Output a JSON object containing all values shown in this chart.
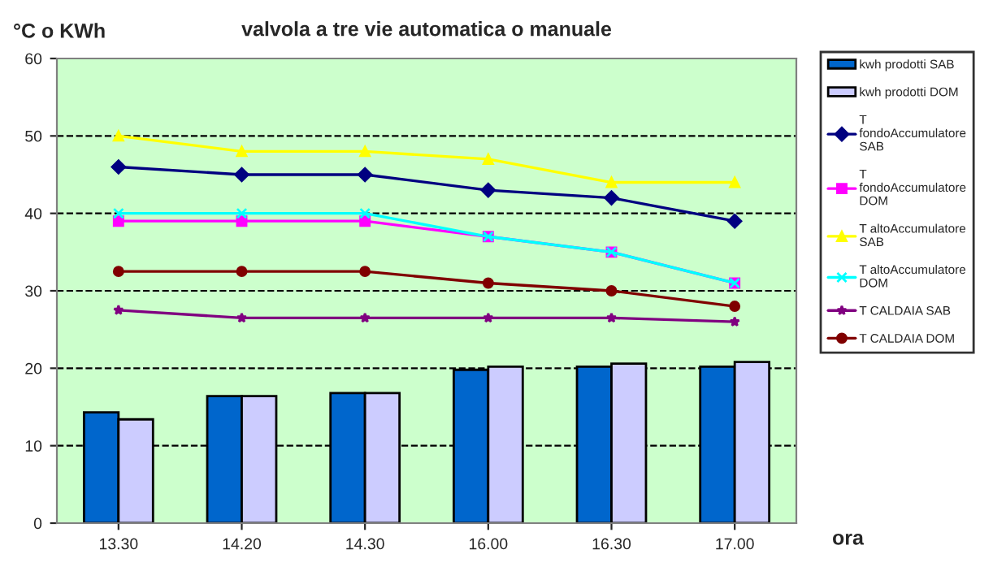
{
  "chart_data": {
    "type": "bar",
    "title": "valvola a tre vie automatica o manuale",
    "ylabel": "°C o KWh",
    "xlabel": "ora",
    "categories": [
      "13.30",
      "14.20",
      "14.30",
      "16.00",
      "16.30",
      "17.00"
    ],
    "series": [
      {
        "name": "kwh prodotti SAB",
        "color": "#0066cc",
        "values": [
          14.3,
          16.4,
          16.8,
          19.8,
          20.2,
          20.2
        ]
      },
      {
        "name": "kwh prodotti DOM",
        "color": "#ccccff",
        "values": [
          13.4,
          16.4,
          16.8,
          20.2,
          20.6,
          20.8
        ]
      },
      {
        "name": "T fondoAccumulatore SAB",
        "type": "line",
        "color": "#000080",
        "marker": "diamond",
        "values": [
          46,
          45,
          45,
          43,
          42,
          39
        ]
      },
      {
        "name": "T fondoAccumulatore DOM",
        "type": "line",
        "color": "#ff00ff",
        "marker": "square",
        "values": [
          39,
          39,
          39,
          37,
          35,
          31
        ]
      },
      {
        "name": "T altoAccumulatore SAB",
        "type": "line",
        "color": "#ffff00",
        "marker": "triangle",
        "values": [
          50,
          48,
          48,
          47,
          44,
          44
        ]
      },
      {
        "name": "T altoAccumulatore DOM",
        "type": "line",
        "color": "#00ffff",
        "marker": "cross",
        "values": [
          40,
          40,
          40,
          37,
          35,
          31
        ]
      },
      {
        "name": "T CALDAIA SAB",
        "type": "line",
        "color": "#800080",
        "marker": "star",
        "values": [
          27.5,
          26.5,
          26.5,
          26.5,
          26.5,
          26
        ]
      },
      {
        "name": "T CALDAIA DOM",
        "type": "line",
        "color": "#800000",
        "marker": "circle",
        "values": [
          32.5,
          32.5,
          32.5,
          31,
          30,
          28
        ]
      }
    ],
    "ylim": [
      0,
      60
    ],
    "yticks": [
      0,
      10,
      20,
      30,
      40,
      50,
      60
    ],
    "grid": "y",
    "legend": "right"
  }
}
